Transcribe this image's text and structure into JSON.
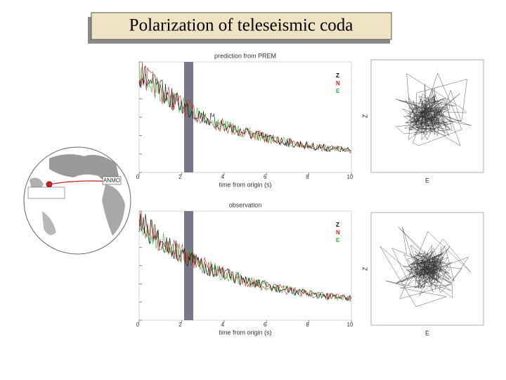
{
  "title": "Polarization of teleseismic coda",
  "station": "ANMO",
  "panels": [
    {
      "heading": "prediction from PREM",
      "x_axis_label": "time from origin (s)",
      "x_ticks": [
        "0",
        "2",
        "4",
        "6",
        "8",
        "10"
      ],
      "components": [
        {
          "name": "Z",
          "color": "#000000"
        },
        {
          "name": "N",
          "color": "#d02020"
        },
        {
          "name": "E",
          "color": "#30b030"
        }
      ],
      "particle_motion": {
        "x_label": "E",
        "y_label": "Z"
      }
    },
    {
      "heading": "observation",
      "x_axis_label": "time from origin (s)",
      "x_ticks": [
        "0",
        "2",
        "4",
        "6",
        "8",
        "10"
      ],
      "components": [
        {
          "name": "Z",
          "color": "#000000"
        },
        {
          "name": "N",
          "color": "#d02020"
        },
        {
          "name": "E",
          "color": "#30b030"
        }
      ],
      "particle_motion": {
        "x_label": "E",
        "y_label": "Z"
      }
    }
  ]
}
